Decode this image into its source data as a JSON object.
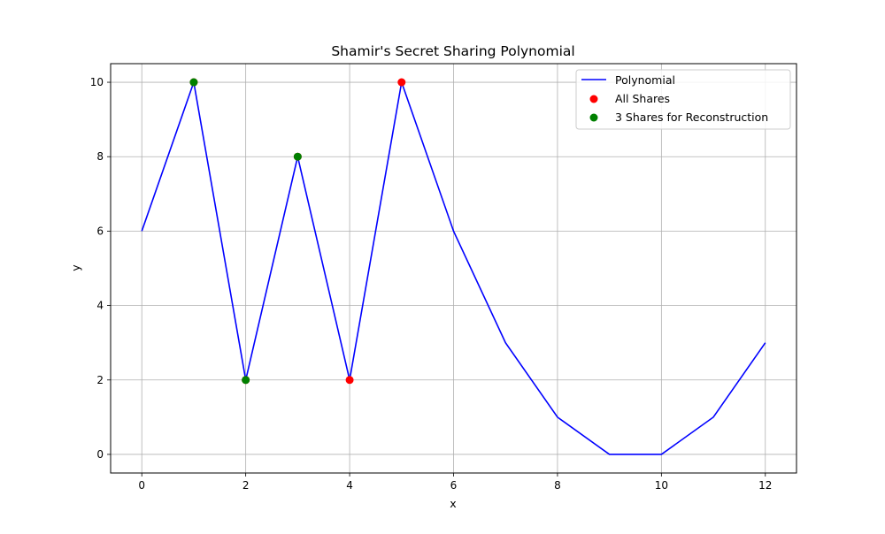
{
  "chart_data": {
    "type": "line",
    "title": "Shamir's Secret Sharing Polynomial",
    "xlabel": "x",
    "ylabel": "y",
    "xlim": [
      -0.6,
      12.6
    ],
    "ylim": [
      -0.5,
      10.5
    ],
    "xticks": [
      0,
      2,
      4,
      6,
      8,
      10,
      12
    ],
    "yticks": [
      0,
      2,
      4,
      6,
      8,
      10
    ],
    "grid": true,
    "legend_position": "top-right",
    "series": [
      {
        "name": "Polynomial",
        "kind": "line",
        "color": "#0000ff",
        "x": [
          0,
          1,
          2,
          3,
          4,
          5,
          6,
          7,
          8,
          9,
          10,
          11,
          12
        ],
        "y": [
          6,
          10,
          2,
          8,
          2,
          10,
          6,
          3,
          1,
          0,
          0,
          1,
          3
        ]
      },
      {
        "name": "All Shares",
        "kind": "scatter",
        "color": "#ff0000",
        "x": [
          1,
          2,
          3,
          4,
          5
        ],
        "y": [
          10,
          2,
          8,
          2,
          10
        ]
      },
      {
        "name": "3 Shares for Reconstruction",
        "kind": "scatter",
        "color": "#008000",
        "x": [
          1,
          2,
          3
        ],
        "y": [
          10,
          2,
          8
        ]
      }
    ]
  }
}
